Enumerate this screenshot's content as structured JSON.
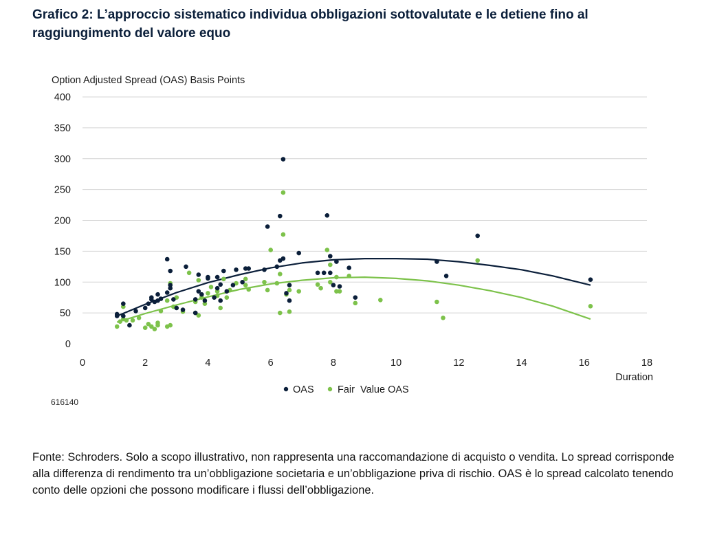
{
  "title": "Grafico 2: L’approccio sistematico individua obbligazioni sottovalutate e le detiene fino al raggiungimento del valore equo",
  "source_id": "616140",
  "footnote": "Fonte: Schroders. Solo a scopo illustrativo, non rappresenta una raccomandazione di acquisto o vendita. Lo spread corrisponde alla differenza di rendimento tra un’obbligazione societaria e un’obbligazione priva di rischio. OAS è lo spread calcolato tenendo conto delle opzioni che possono modificare i flussi dell’obbligazione.",
  "colors": {
    "oas": "#0b1f3a",
    "fair": "#7dc24b",
    "grid": "#d4d4d4"
  },
  "chart_data": {
    "type": "scatter",
    "ylabel": "Option Adjusted Spread (OAS) Basis Points",
    "xlabel": "Duration",
    "xlim": [
      0,
      18
    ],
    "ylim": [
      0,
      400
    ],
    "xticks": [
      0,
      2,
      4,
      6,
      8,
      10,
      12,
      14,
      16,
      18
    ],
    "yticks": [
      0,
      50,
      100,
      150,
      200,
      250,
      300,
      350,
      400
    ],
    "grid": "horizontal",
    "legend_position": "bottom-center",
    "series": [
      {
        "name": "OAS",
        "color": "#0b1f3a",
        "points": [
          [
            1.1,
            45
          ],
          [
            1.1,
            48
          ],
          [
            1.3,
            65
          ],
          [
            1.3,
            45
          ],
          [
            1.5,
            30
          ],
          [
            1.7,
            53
          ],
          [
            2.0,
            58
          ],
          [
            2.1,
            65
          ],
          [
            2.2,
            75
          ],
          [
            2.2,
            72
          ],
          [
            2.3,
            68
          ],
          [
            2.4,
            80
          ],
          [
            2.4,
            70
          ],
          [
            2.5,
            73
          ],
          [
            2.7,
            83
          ],
          [
            2.7,
            137
          ],
          [
            2.8,
            118
          ],
          [
            2.8,
            95
          ],
          [
            2.8,
            90
          ],
          [
            2.9,
            72
          ],
          [
            3.0,
            58
          ],
          [
            3.2,
            55
          ],
          [
            3.3,
            125
          ],
          [
            3.6,
            50
          ],
          [
            3.6,
            72
          ],
          [
            3.7,
            112
          ],
          [
            3.7,
            85
          ],
          [
            3.8,
            80
          ],
          [
            3.9,
            70
          ],
          [
            4.0,
            106
          ],
          [
            4.0,
            108
          ],
          [
            4.2,
            75
          ],
          [
            4.3,
            108
          ],
          [
            4.3,
            90
          ],
          [
            4.4,
            70
          ],
          [
            4.4,
            96
          ],
          [
            4.5,
            118
          ],
          [
            4.6,
            85
          ],
          [
            4.8,
            95
          ],
          [
            4.9,
            120
          ],
          [
            5.1,
            100
          ],
          [
            5.2,
            122
          ],
          [
            5.3,
            122
          ],
          [
            5.8,
            120
          ],
          [
            5.9,
            190
          ],
          [
            6.2,
            125
          ],
          [
            6.3,
            135
          ],
          [
            6.3,
            207
          ],
          [
            6.4,
            138
          ],
          [
            6.4,
            299
          ],
          [
            6.5,
            82
          ],
          [
            6.6,
            70
          ],
          [
            6.6,
            95
          ],
          [
            6.9,
            147
          ],
          [
            7.5,
            115
          ],
          [
            7.7,
            115
          ],
          [
            7.8,
            208
          ],
          [
            7.9,
            142
          ],
          [
            7.9,
            115
          ],
          [
            8.0,
            95
          ],
          [
            8.1,
            133
          ],
          [
            8.2,
            93
          ],
          [
            8.5,
            123
          ],
          [
            8.7,
            75
          ],
          [
            11.3,
            133
          ],
          [
            11.6,
            110
          ],
          [
            12.6,
            175
          ],
          [
            16.2,
            104
          ]
        ],
        "trend": [
          [
            1.1,
            45
          ],
          [
            2,
            64
          ],
          [
            3,
            83
          ],
          [
            4,
            99
          ],
          [
            5,
            112
          ],
          [
            6,
            123
          ],
          [
            7,
            131
          ],
          [
            8,
            136
          ],
          [
            9,
            138
          ],
          [
            10,
            138
          ],
          [
            11,
            137
          ],
          [
            12,
            133
          ],
          [
            13,
            127
          ],
          [
            14,
            120
          ],
          [
            15,
            110
          ],
          [
            16.2,
            95
          ]
        ]
      },
      {
        "name": "Fair  Value OAS",
        "color": "#7dc24b",
        "points": [
          [
            1.1,
            28
          ],
          [
            1.2,
            36
          ],
          [
            1.3,
            60
          ],
          [
            1.3,
            40
          ],
          [
            1.4,
            38
          ],
          [
            1.6,
            38
          ],
          [
            1.8,
            42
          ],
          [
            2.0,
            26
          ],
          [
            2.1,
            32
          ],
          [
            2.2,
            28
          ],
          [
            2.3,
            24
          ],
          [
            2.4,
            30
          ],
          [
            2.4,
            34
          ],
          [
            2.5,
            53
          ],
          [
            2.7,
            28
          ],
          [
            2.7,
            70
          ],
          [
            2.8,
            30
          ],
          [
            2.8,
            98
          ],
          [
            2.9,
            60
          ],
          [
            3.0,
            75
          ],
          [
            3.2,
            52
          ],
          [
            3.4,
            115
          ],
          [
            3.6,
            50
          ],
          [
            3.6,
            68
          ],
          [
            3.7,
            103
          ],
          [
            3.7,
            46
          ],
          [
            3.8,
            75
          ],
          [
            3.9,
            65
          ],
          [
            4.0,
            82
          ],
          [
            4.1,
            92
          ],
          [
            4.3,
            78
          ],
          [
            4.3,
            85
          ],
          [
            4.4,
            58
          ],
          [
            4.5,
            105
          ],
          [
            4.6,
            75
          ],
          [
            4.7,
            87
          ],
          [
            4.9,
            98
          ],
          [
            5.2,
            95
          ],
          [
            5.2,
            105
          ],
          [
            5.3,
            88
          ],
          [
            5.8,
            100
          ],
          [
            5.9,
            87
          ],
          [
            6.0,
            152
          ],
          [
            6.2,
            98
          ],
          [
            6.3,
            50
          ],
          [
            6.3,
            113
          ],
          [
            6.4,
            177
          ],
          [
            6.4,
            245
          ],
          [
            6.5,
            80
          ],
          [
            6.6,
            52
          ],
          [
            6.6,
            87
          ],
          [
            6.9,
            85
          ],
          [
            7.5,
            96
          ],
          [
            7.6,
            90
          ],
          [
            7.8,
            152
          ],
          [
            7.9,
            128
          ],
          [
            7.9,
            100
          ],
          [
            8.1,
            85
          ],
          [
            8.1,
            108
          ],
          [
            8.2,
            85
          ],
          [
            8.5,
            110
          ],
          [
            8.7,
            66
          ],
          [
            9.5,
            71
          ],
          [
            11.3,
            68
          ],
          [
            11.5,
            42
          ],
          [
            12.6,
            135
          ],
          [
            16.2,
            61
          ]
        ],
        "trend": [
          [
            1.1,
            35
          ],
          [
            2,
            49
          ],
          [
            3,
            63
          ],
          [
            4,
            76
          ],
          [
            5,
            88
          ],
          [
            6,
            97
          ],
          [
            7,
            103
          ],
          [
            8,
            107
          ],
          [
            9,
            108
          ],
          [
            10,
            106
          ],
          [
            11,
            102
          ],
          [
            12,
            95
          ],
          [
            13,
            86
          ],
          [
            14,
            75
          ],
          [
            15,
            61
          ],
          [
            16.2,
            40
          ]
        ]
      }
    ]
  }
}
